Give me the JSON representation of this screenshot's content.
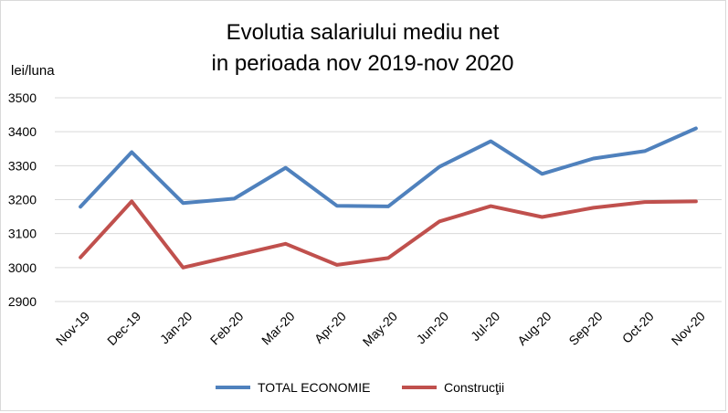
{
  "chart_data": {
    "type": "line",
    "title_lines": [
      "Evolutia salariului mediu net",
      "in perioada nov 2019-nov 2020"
    ],
    "ylabel": "lei/luna",
    "xlabel": "",
    "categories": [
      "Nov-19",
      "Dec-19",
      "Jan-20",
      "Feb-20",
      "Mar-20",
      "Apr-20",
      "May-20",
      "Jun-20",
      "Jul-20",
      "Aug-20",
      "Sep-20",
      "Oct-20",
      "Nov-20"
    ],
    "ylim": [
      2900,
      3500
    ],
    "yticks": [
      "2900",
      "3000",
      "3100",
      "3200",
      "3300",
      "3400",
      "3500"
    ],
    "grid": true,
    "legend_position": "bottom",
    "series": [
      {
        "name": "TOTAL ECONOMIE",
        "color": "#4f81bd",
        "values": [
          3179,
          3340,
          3190,
          3203,
          3294,
          3182,
          3180,
          3297,
          3372,
          3276,
          3321,
          3343,
          3410
        ]
      },
      {
        "name": "Construcţii",
        "color": "#c0504d",
        "values": [
          3030,
          3195,
          3000,
          3035,
          3070,
          3008,
          3028,
          3136,
          3181,
          3149,
          3176,
          3193,
          3195
        ]
      }
    ]
  }
}
